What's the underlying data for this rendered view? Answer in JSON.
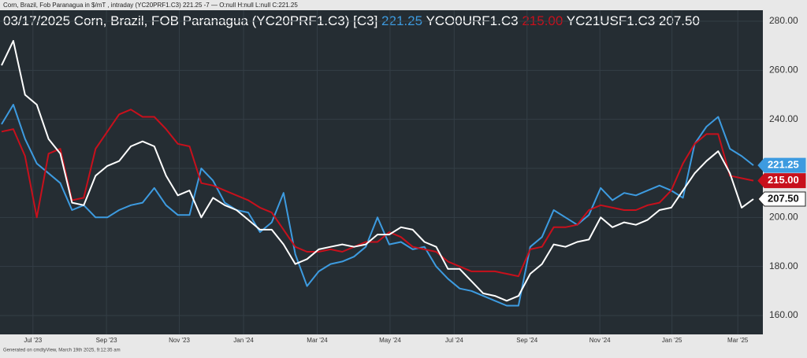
{
  "header_text": "Corn, Brazil, Fob Paranagua in $/mT , intraday (YC20PRF1.C3) 221.25 -7 — O:null H:null L:null C:221.25",
  "footer_text": "Generated on cmdtyView, March 19th 2025, 9:12:35 am",
  "chart_data": {
    "type": "line",
    "title": "03/17/2025 Corn, Brazil, FOB Paranagua (YC20PRF1.C3) [C3]",
    "xlim": [
      0,
      64
    ],
    "xticks": [
      {
        "value": 2.67,
        "label": "Jul '23"
      },
      {
        "value": 8.93,
        "label": "Sep '23"
      },
      {
        "value": 15.13,
        "label": "Nov '23"
      },
      {
        "value": 20.6,
        "label": "Jan '24"
      },
      {
        "value": 26.87,
        "label": "Mar '24"
      },
      {
        "value": 33.07,
        "label": "May '24"
      },
      {
        "value": 38.53,
        "label": "Jul '24"
      },
      {
        "value": 44.73,
        "label": "Sep '24"
      },
      {
        "value": 50.93,
        "label": "Nov '24"
      },
      {
        "value": 57.07,
        "label": "Jan '25"
      },
      {
        "value": 62.67,
        "label": "Mar '25"
      }
    ],
    "ylim": [
      160,
      280
    ],
    "yticks": [
      {
        "value": 160,
        "label": "160.00"
      },
      {
        "value": 180,
        "label": "180.00"
      },
      {
        "value": 200,
        "label": "200.00"
      },
      {
        "value": 220,
        "label": "220.00"
      },
      {
        "value": 240,
        "label": "240.00"
      },
      {
        "value": 260,
        "label": "260.00"
      },
      {
        "value": 280,
        "label": "280.00"
      }
    ],
    "grid": true,
    "series": [
      {
        "color": "#3d9be0",
        "last_label": "221.25",
        "values": [
          238,
          246,
          232,
          222,
          218,
          214,
          203,
          205,
          200,
          200,
          203,
          205,
          206,
          212,
          205,
          201,
          201,
          220,
          215,
          206,
          203,
          202,
          194,
          198,
          210,
          185,
          172,
          178,
          181,
          182,
          184,
          188,
          200,
          189,
          190,
          187,
          188,
          180,
          175,
          171,
          170,
          168,
          166,
          164,
          164,
          188,
          192,
          203,
          200,
          197,
          201,
          212,
          207,
          210,
          209,
          211,
          213,
          211,
          208,
          230,
          237,
          241,
          228,
          225,
          221.25
        ]
      },
      {
        "name": "YCO0URF1.C3",
        "color": "#c8101c",
        "last_label": "215.00",
        "values": [
          235,
          236,
          225,
          200,
          226,
          228,
          207,
          208,
          228,
          235,
          242,
          244,
          241,
          241,
          236,
          230,
          229,
          214,
          213,
          211,
          209,
          207,
          204,
          202,
          195,
          188,
          186,
          186,
          187,
          186,
          188,
          190,
          190,
          194,
          192,
          188,
          187,
          186,
          182,
          180,
          178,
          178,
          178,
          177,
          176,
          187,
          188,
          196,
          196,
          197,
          203,
          205,
          204,
          203,
          203,
          205,
          206,
          211,
          222,
          230,
          234,
          234,
          217,
          216,
          215
        ]
      },
      {
        "name": "YC21USF1.C3",
        "color": "#ffffff",
        "last_label": "207.50",
        "values": [
          262,
          272,
          250,
          246,
          232,
          226,
          206,
          205,
          217,
          221,
          223,
          229,
          231,
          229,
          217,
          209,
          211,
          200,
          208,
          205,
          203,
          199,
          195,
          195,
          189,
          181,
          183,
          187,
          188,
          189,
          188,
          189,
          193,
          193,
          196,
          195,
          190,
          188,
          179,
          179,
          174,
          169,
          168,
          166,
          168,
          177,
          181,
          189,
          188,
          190,
          191,
          200,
          196,
          198,
          197,
          199,
          203,
          204,
          211,
          218,
          223,
          227,
          218,
          204,
          207.5
        ]
      }
    ]
  }
}
